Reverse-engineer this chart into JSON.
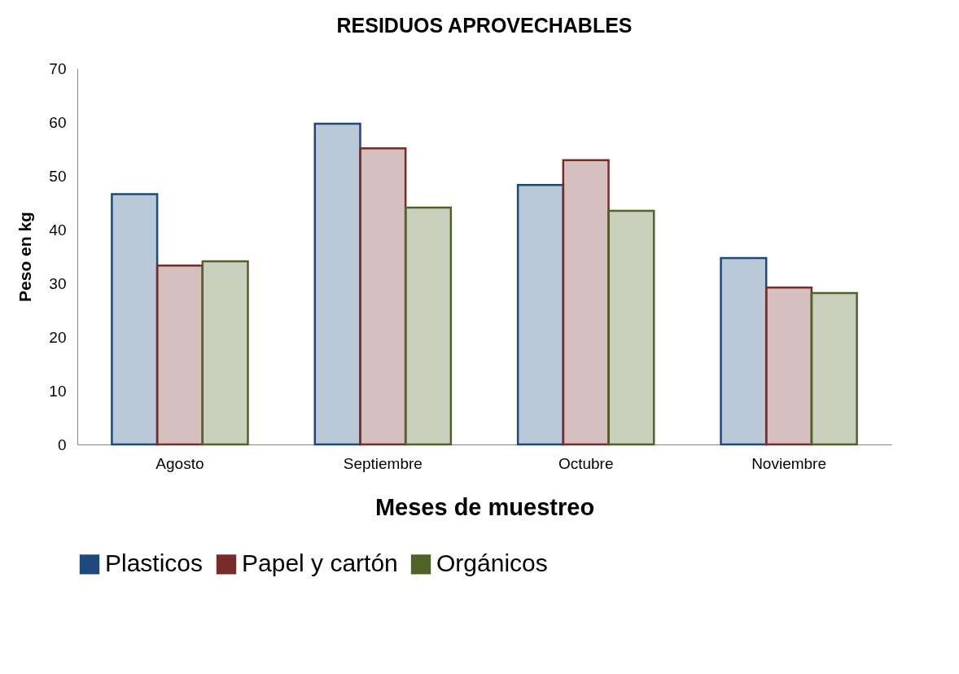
{
  "chart_data": {
    "type": "bar",
    "title": "RESIDUOS APROVECHABLES",
    "xlabel": "Meses de muestreo",
    "ylabel": "Peso en kg",
    "categories": [
      "Agosto",
      "Septiembre",
      "Octubre",
      "Noviembre"
    ],
    "series": [
      {
        "name": "Plasticos",
        "color": "#1f497d",
        "values": [
          46.6,
          59.7,
          48.3,
          34.7
        ]
      },
      {
        "name": "Papel y cartón",
        "color": "#772c2a",
        "values": [
          33.3,
          55.1,
          52.9,
          29.2
        ]
      },
      {
        "name": "Orgánicos",
        "color": "#4f6228",
        "values": [
          34.1,
          44.1,
          43.5,
          28.2
        ]
      }
    ],
    "ylim": [
      0,
      70
    ],
    "yticks": [
      0,
      10,
      20,
      30,
      40,
      50,
      60,
      70
    ],
    "grid": false,
    "legend": "bottom"
  }
}
